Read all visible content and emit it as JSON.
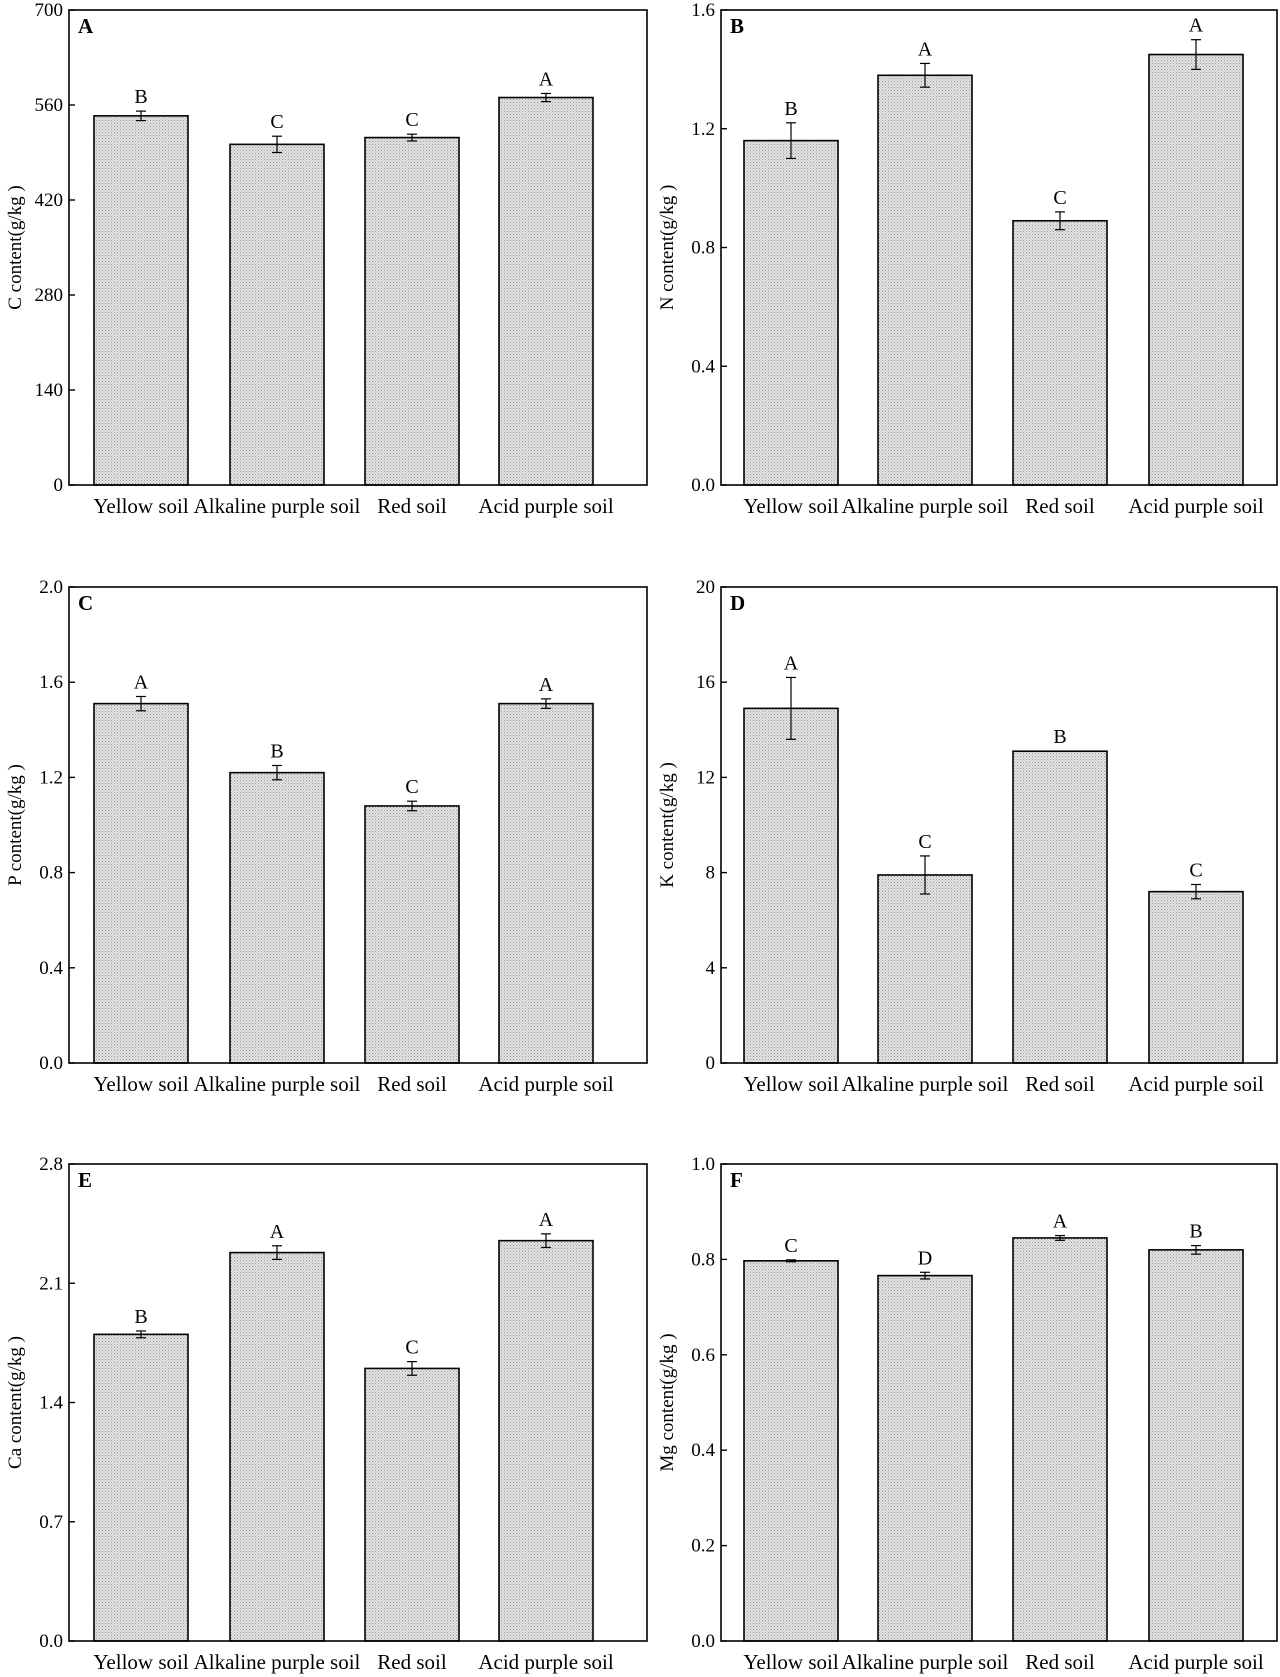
{
  "figure": {
    "panels": [
      "A",
      "B",
      "C",
      "D",
      "E",
      "F"
    ]
  },
  "chart_data": [
    {
      "panel_letter": "A",
      "type": "bar",
      "title": "",
      "xlabel": "",
      "ylabel": "C content(g/kg )",
      "categories": [
        "Yellow soil",
        "Alkaline purple soil",
        "Red soil",
        "Acid purple soil"
      ],
      "values": [
        544,
        502,
        512,
        571
      ],
      "errors": [
        7,
        12,
        5,
        6
      ],
      "significance": [
        "B",
        "C",
        "C",
        "A"
      ],
      "ylim": [
        0,
        700
      ],
      "yticks": [
        0,
        140,
        280,
        420,
        560,
        700
      ],
      "ytick_labels": [
        "0",
        "140",
        "280",
        "420",
        "560",
        "700"
      ],
      "grid": false,
      "bar_fill": "#d3d3d3"
    },
    {
      "panel_letter": "B",
      "type": "bar",
      "title": "",
      "xlabel": "",
      "ylabel": "N content(g/kg )",
      "categories": [
        "Yellow soil",
        "Alkaline purple soil",
        "Red soil",
        "Acid purple soil"
      ],
      "values": [
        1.16,
        1.38,
        0.89,
        1.45
      ],
      "errors": [
        0.06,
        0.04,
        0.03,
        0.05
      ],
      "significance": [
        "B",
        "A",
        "C",
        "A"
      ],
      "ylim": [
        0,
        1.6
      ],
      "yticks": [
        0,
        0.4,
        0.8,
        1.2,
        1.6
      ],
      "ytick_labels": [
        "0.0",
        "0.4",
        "0.8",
        "1.2",
        "1.6"
      ],
      "grid": false,
      "bar_fill": "#d3d3d3"
    },
    {
      "panel_letter": "C",
      "type": "bar",
      "title": "",
      "xlabel": "",
      "ylabel": "P content(g/kg )",
      "categories": [
        "Yellow soil",
        "Alkaline purple soil",
        "Red soil",
        "Acid purple soil"
      ],
      "values": [
        1.51,
        1.22,
        1.08,
        1.51
      ],
      "errors": [
        0.03,
        0.03,
        0.02,
        0.02
      ],
      "significance": [
        "A",
        "B",
        "C",
        "A"
      ],
      "ylim": [
        0,
        2.0
      ],
      "yticks": [
        0,
        0.4,
        0.8,
        1.2,
        1.6,
        2.0
      ],
      "ytick_labels": [
        "0.0",
        "0.4",
        "0.8",
        "1.2",
        "1.6",
        "2.0"
      ],
      "grid": false,
      "bar_fill": "#d3d3d3"
    },
    {
      "panel_letter": "D",
      "type": "bar",
      "title": "",
      "xlabel": "",
      "ylabel": "K content(g/kg )",
      "categories": [
        "Yellow soil",
        "Alkaline purple soil",
        "Red soil",
        "Acid purple soil"
      ],
      "values": [
        14.9,
        7.9,
        13.1,
        7.2
      ],
      "errors": [
        1.3,
        0.8,
        0,
        0.3
      ],
      "significance": [
        "A",
        "C",
        "B",
        "C"
      ],
      "ylim": [
        0,
        20
      ],
      "yticks": [
        0,
        4,
        8,
        12,
        16,
        20
      ],
      "ytick_labels": [
        "0",
        "4",
        "8",
        "12",
        "16",
        "20"
      ],
      "grid": false,
      "bar_fill": "#d3d3d3"
    },
    {
      "panel_letter": "E",
      "type": "bar",
      "title": "",
      "xlabel": "",
      "ylabel": "Ca content(g/kg )",
      "categories": [
        "Yellow soil",
        "Alkaline purple soil",
        "Red soil",
        "Acid purple soil"
      ],
      "values": [
        1.8,
        2.28,
        1.6,
        2.35
      ],
      "errors": [
        0.02,
        0.04,
        0.04,
        0.04
      ],
      "significance": [
        "B",
        "A",
        "C",
        "A"
      ],
      "ylim": [
        0,
        2.8
      ],
      "yticks": [
        0,
        0.7,
        1.4,
        2.1,
        2.8
      ],
      "ytick_labels": [
        "0.0",
        "0.7",
        "1.4",
        "2.1",
        "2.8"
      ],
      "grid": false,
      "bar_fill": "#d3d3d3"
    },
    {
      "panel_letter": "F",
      "type": "bar",
      "title": "",
      "xlabel": "",
      "ylabel": "Mg content(g/kg )",
      "categories": [
        "Yellow soil",
        "Alkaline purple soil",
        "Red soil",
        "Acid purple soil"
      ],
      "values": [
        0.797,
        0.766,
        0.845,
        0.82
      ],
      "errors": [
        0.002,
        0.007,
        0.005,
        0.009
      ],
      "significance": [
        "C",
        "D",
        "A",
        "B"
      ],
      "ylim": [
        0,
        1.0
      ],
      "yticks": [
        0,
        0.2,
        0.4,
        0.6,
        0.8,
        1.0
      ],
      "ytick_labels": [
        "0.0",
        "0.2",
        "0.4",
        "0.6",
        "0.8",
        "1.0"
      ],
      "grid": false,
      "bar_fill": "#d3d3d3"
    }
  ]
}
